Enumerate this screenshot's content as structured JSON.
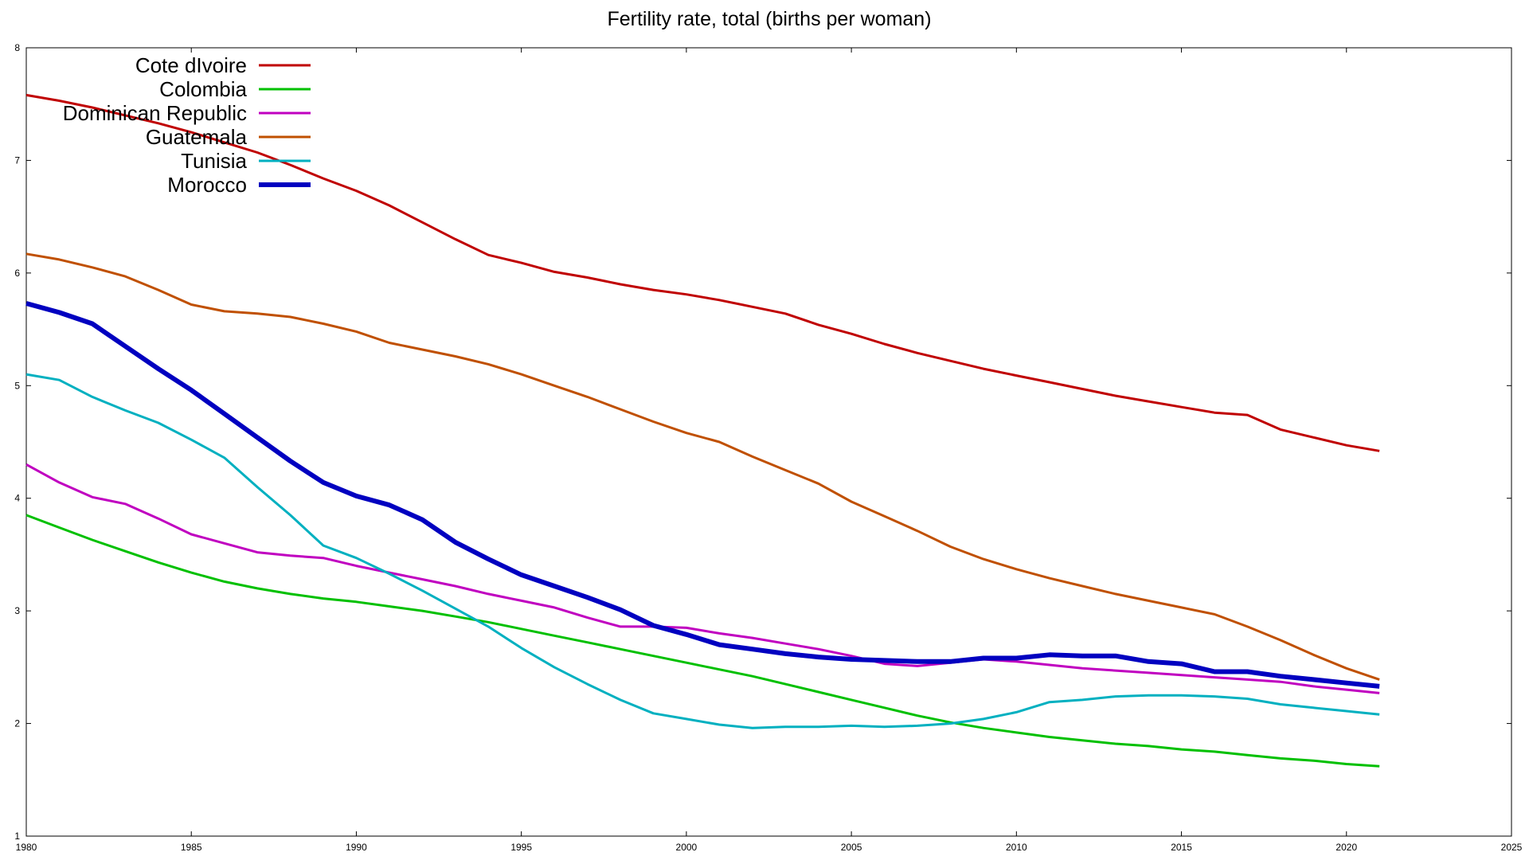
{
  "chart_data": {
    "type": "line",
    "title": "Fertility rate, total (births per woman)",
    "xlabel": "",
    "ylabel": "",
    "xlim": [
      1980,
      2025
    ],
    "ylim": [
      1,
      8
    ],
    "x_ticks": [
      1980,
      1985,
      1990,
      1995,
      2000,
      2005,
      2010,
      2015,
      2020,
      2025
    ],
    "y_ticks": [
      1,
      2,
      3,
      4,
      5,
      6,
      7,
      8
    ],
    "grid": false,
    "legend_position": "top-left",
    "x": [
      1980,
      1981,
      1982,
      1983,
      1984,
      1985,
      1986,
      1987,
      1988,
      1989,
      1990,
      1991,
      1992,
      1993,
      1994,
      1995,
      1996,
      1997,
      1998,
      1999,
      2000,
      2001,
      2002,
      2003,
      2004,
      2005,
      2006,
      2007,
      2008,
      2009,
      2010,
      2011,
      2012,
      2013,
      2014,
      2015,
      2016,
      2017,
      2018,
      2019,
      2020,
      2021
    ],
    "series": [
      {
        "name": "Cote dIvoire",
        "color": "#c00000",
        "width": 3,
        "values": [
          7.58,
          7.53,
          7.47,
          7.4,
          7.33,
          7.25,
          7.16,
          7.07,
          6.96,
          6.84,
          6.73,
          6.6,
          6.45,
          6.3,
          6.16,
          6.09,
          6.01,
          5.96,
          5.9,
          5.85,
          5.81,
          5.76,
          5.7,
          5.64,
          5.54,
          5.46,
          5.37,
          5.29,
          5.22,
          5.15,
          5.09,
          5.03,
          4.97,
          4.91,
          4.86,
          4.81,
          4.76,
          4.74,
          4.61,
          4.54,
          4.47,
          4.42
        ]
      },
      {
        "name": "Colombia",
        "color": "#00c000",
        "width": 3,
        "values": [
          3.85,
          3.74,
          3.63,
          3.53,
          3.43,
          3.34,
          3.26,
          3.2,
          3.15,
          3.11,
          3.08,
          3.04,
          3.0,
          2.95,
          2.9,
          2.84,
          2.78,
          2.72,
          2.66,
          2.6,
          2.54,
          2.48,
          2.42,
          2.35,
          2.28,
          2.21,
          2.14,
          2.07,
          2.01,
          1.96,
          1.92,
          1.88,
          1.85,
          1.82,
          1.8,
          1.77,
          1.75,
          1.72,
          1.69,
          1.67,
          1.64,
          1.62
        ]
      },
      {
        "name": "Dominican Republic",
        "color": "#c000c0",
        "width": 3,
        "values": [
          4.3,
          4.14,
          4.01,
          3.95,
          3.82,
          3.68,
          3.6,
          3.52,
          3.49,
          3.47,
          3.4,
          3.34,
          3.28,
          3.22,
          3.15,
          3.09,
          3.03,
          2.94,
          2.86,
          2.86,
          2.85,
          2.8,
          2.76,
          2.71,
          2.66,
          2.6,
          2.53,
          2.51,
          2.54,
          2.57,
          2.55,
          2.52,
          2.49,
          2.47,
          2.45,
          2.43,
          2.41,
          2.39,
          2.37,
          2.33,
          2.3,
          2.27
        ]
      },
      {
        "name": "Guatemala",
        "color": "#c05000",
        "width": 3,
        "values": [
          6.17,
          6.12,
          6.05,
          5.97,
          5.85,
          5.72,
          5.66,
          5.64,
          5.61,
          5.55,
          5.48,
          5.38,
          5.32,
          5.26,
          5.19,
          5.1,
          5.0,
          4.9,
          4.79,
          4.68,
          4.58,
          4.5,
          4.37,
          4.25,
          4.13,
          3.97,
          3.84,
          3.71,
          3.57,
          3.46,
          3.37,
          3.29,
          3.22,
          3.15,
          3.09,
          3.03,
          2.97,
          2.86,
          2.74,
          2.61,
          2.49,
          2.39
        ]
      },
      {
        "name": "Tunisia",
        "color": "#00b0c0",
        "width": 3,
        "values": [
          5.1,
          5.05,
          4.9,
          4.78,
          4.67,
          4.52,
          4.36,
          4.1,
          3.85,
          3.58,
          3.47,
          3.33,
          3.18,
          3.02,
          2.86,
          2.67,
          2.5,
          2.35,
          2.21,
          2.09,
          2.04,
          1.99,
          1.96,
          1.97,
          1.97,
          1.98,
          1.97,
          1.98,
          2.0,
          2.04,
          2.1,
          2.19,
          2.21,
          2.24,
          2.25,
          2.25,
          2.24,
          2.22,
          2.17,
          2.14,
          2.11,
          2.08
        ]
      },
      {
        "name": "Morocco",
        "color": "#0000c0",
        "width": 6,
        "values": [
          5.73,
          5.65,
          5.55,
          5.35,
          5.15,
          4.96,
          4.75,
          4.54,
          4.33,
          4.14,
          4.02,
          3.94,
          3.81,
          3.61,
          3.46,
          3.32,
          3.22,
          3.12,
          3.01,
          2.87,
          2.79,
          2.7,
          2.66,
          2.62,
          2.59,
          2.57,
          2.56,
          2.55,
          2.55,
          2.58,
          2.58,
          2.61,
          2.6,
          2.6,
          2.55,
          2.53,
          2.46,
          2.46,
          2.42,
          2.39,
          2.36,
          2.33
        ]
      }
    ]
  }
}
